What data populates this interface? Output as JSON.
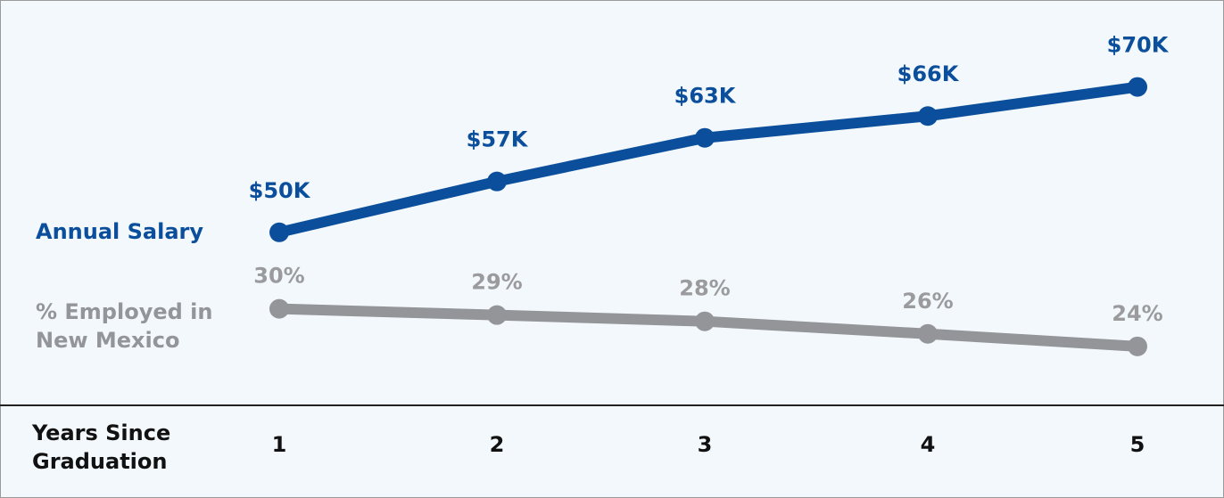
{
  "chart_data": {
    "type": "line",
    "x_label": "Years Since Graduation",
    "categories": [
      "1",
      "2",
      "3",
      "4",
      "5"
    ],
    "series": [
      {
        "name": "Annual Salary",
        "color": "#0b4f9c",
        "values": [
          50,
          57,
          63,
          66,
          70
        ],
        "value_labels": [
          "$50K",
          "$57K",
          "$63K",
          "$66K",
          "$70K"
        ]
      },
      {
        "name": "% Employed in New Mexico",
        "color": "#939598",
        "axis": "y2",
        "values": [
          30,
          29,
          28,
          26,
          24
        ],
        "value_labels": [
          "30%",
          "29%",
          "28%",
          "26%",
          "24%"
        ]
      }
    ],
    "ylim": [
      30,
      80
    ],
    "y2lim": [
      19,
      77
    ]
  }
}
